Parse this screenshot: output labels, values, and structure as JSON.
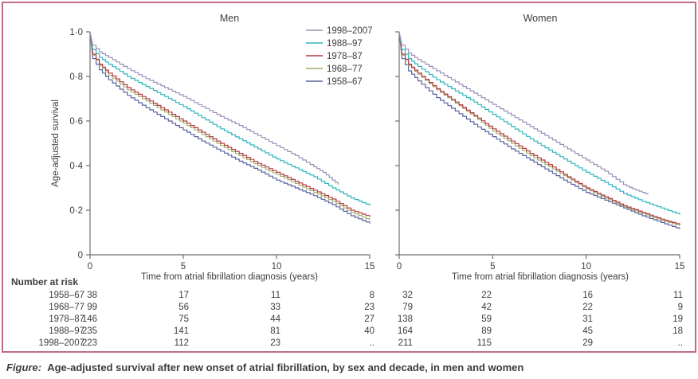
{
  "figure": {
    "caption_label": "Figure:",
    "caption_text": "Age-adjusted survival after new onset of atrial fibrillation, by sex and decade, in men and women",
    "frame_color": "#c06c8e",
    "text_color": "#3d3d3d",
    "axis_color": "#6e6e6e"
  },
  "chart_data": [
    {
      "type": "line",
      "title": "Men",
      "xlabel": "Time from atrial fibrillation diagnosis (years)",
      "ylabel": "Age-adjusted survival",
      "xlim": [
        0,
        15
      ],
      "ylim": [
        0,
        1
      ],
      "grid": false,
      "x_ticks": [
        {
          "v": 0,
          "label": "0"
        },
        {
          "v": 5,
          "label": "5"
        },
        {
          "v": 10,
          "label": "10"
        },
        {
          "v": 15,
          "label": "15"
        }
      ],
      "y_ticks": [
        {
          "v": 1,
          "label": "1·0"
        },
        {
          "v": 0.8,
          "label": "0·8"
        },
        {
          "v": 0.6,
          "label": "0·6"
        },
        {
          "v": 0.4,
          "label": "0·4"
        },
        {
          "v": 0.2,
          "label": "0·2"
        },
        {
          "v": 0,
          "label": "0"
        }
      ],
      "show_y_tick_labels": true,
      "legend": {
        "visible": true,
        "position": "top-right-inside"
      },
      "series": [
        {
          "name": "1998–2007",
          "color": "#9c8fb6",
          "points": [
            [
              0,
              1.0
            ],
            [
              0.15,
              0.94
            ],
            [
              0.5,
              0.91
            ],
            [
              1,
              0.885
            ],
            [
              2,
              0.835
            ],
            [
              3,
              0.79
            ],
            [
              4,
              0.75
            ],
            [
              5,
              0.71
            ],
            [
              6,
              0.665
            ],
            [
              7,
              0.62
            ],
            [
              8,
              0.58
            ],
            [
              9,
              0.535
            ],
            [
              10,
              0.49
            ],
            [
              11,
              0.445
            ],
            [
              12,
              0.395
            ],
            [
              12.5,
              0.37
            ],
            [
              13,
              0.335
            ],
            [
              13.3,
              0.315
            ]
          ]
        },
        {
          "name": "1988–97",
          "color": "#2fb4bd",
          "points": [
            [
              0,
              1.0
            ],
            [
              0.15,
              0.92
            ],
            [
              0.5,
              0.885
            ],
            [
              1,
              0.855
            ],
            [
              2,
              0.8
            ],
            [
              3,
              0.755
            ],
            [
              4,
              0.71
            ],
            [
              5,
              0.665
            ],
            [
              6,
              0.615
            ],
            [
              7,
              0.565
            ],
            [
              8,
              0.52
            ],
            [
              9,
              0.475
            ],
            [
              10,
              0.43
            ],
            [
              11,
              0.39
            ],
            [
              12,
              0.35
            ],
            [
              13,
              0.3
            ],
            [
              14,
              0.255
            ],
            [
              15,
              0.22
            ]
          ]
        },
        {
          "name": "1978–87",
          "color": "#b23a48",
          "points": [
            [
              0,
              1.0
            ],
            [
              0.15,
              0.9
            ],
            [
              0.5,
              0.855
            ],
            [
              1,
              0.815
            ],
            [
              2,
              0.75
            ],
            [
              3,
              0.7
            ],
            [
              4,
              0.65
            ],
            [
              5,
              0.6
            ],
            [
              6,
              0.55
            ],
            [
              7,
              0.5
            ],
            [
              8,
              0.455
            ],
            [
              9,
              0.41
            ],
            [
              10,
              0.37
            ],
            [
              11,
              0.33
            ],
            [
              12,
              0.29
            ],
            [
              13,
              0.25
            ],
            [
              14,
              0.2
            ],
            [
              15,
              0.17
            ]
          ]
        },
        {
          "name": "1968–77",
          "color": "#a3b069",
          "points": [
            [
              0,
              1.0
            ],
            [
              0.15,
              0.895
            ],
            [
              0.5,
              0.85
            ],
            [
              1,
              0.805
            ],
            [
              2,
              0.74
            ],
            [
              3,
              0.69
            ],
            [
              4,
              0.64
            ],
            [
              5,
              0.59
            ],
            [
              6,
              0.54
            ],
            [
              7,
              0.49
            ],
            [
              8,
              0.445
            ],
            [
              9,
              0.4
            ],
            [
              10,
              0.36
            ],
            [
              11,
              0.32
            ],
            [
              12,
              0.28
            ],
            [
              13,
              0.24
            ],
            [
              14,
              0.19
            ],
            [
              15,
              0.155
            ]
          ]
        },
        {
          "name": "1958–67",
          "color": "#57619e",
          "points": [
            [
              0,
              1.0
            ],
            [
              0.15,
              0.88
            ],
            [
              0.5,
              0.83
            ],
            [
              1,
              0.785
            ],
            [
              2,
              0.715
            ],
            [
              3,
              0.66
            ],
            [
              4,
              0.61
            ],
            [
              5,
              0.56
            ],
            [
              6,
              0.51
            ],
            [
              7,
              0.465
            ],
            [
              8,
              0.42
            ],
            [
              9,
              0.38
            ],
            [
              10,
              0.335
            ],
            [
              11,
              0.3
            ],
            [
              12,
              0.265
            ],
            [
              13,
              0.225
            ],
            [
              14,
              0.175
            ],
            [
              15,
              0.14
            ]
          ]
        }
      ]
    },
    {
      "type": "line",
      "title": "Women",
      "xlabel": "Time from atrial fibrillation diagnosis (years)",
      "ylabel": "Age-adjusted survival",
      "xlim": [
        0,
        15
      ],
      "ylim": [
        0,
        1
      ],
      "grid": false,
      "x_ticks": [
        {
          "v": 0,
          "label": "0"
        },
        {
          "v": 5,
          "label": "5"
        },
        {
          "v": 10,
          "label": "10"
        },
        {
          "v": 15,
          "label": "15"
        }
      ],
      "y_ticks": [
        {
          "v": 1,
          "label": "1·0"
        },
        {
          "v": 0.8,
          "label": "0·8"
        },
        {
          "v": 0.6,
          "label": "0·6"
        },
        {
          "v": 0.4,
          "label": "0·4"
        },
        {
          "v": 0.2,
          "label": "0·2"
        },
        {
          "v": 0,
          "label": "0"
        }
      ],
      "show_y_tick_labels": false,
      "legend": {
        "visible": false
      },
      "series": [
        {
          "name": "1998–2007",
          "color": "#9c8fb6",
          "points": [
            [
              0,
              1.0
            ],
            [
              0.15,
              0.94
            ],
            [
              0.5,
              0.905
            ],
            [
              1,
              0.875
            ],
            [
              2,
              0.825
            ],
            [
              3,
              0.775
            ],
            [
              4,
              0.725
            ],
            [
              5,
              0.675
            ],
            [
              6,
              0.625
            ],
            [
              7,
              0.575
            ],
            [
              8,
              0.525
            ],
            [
              9,
              0.475
            ],
            [
              10,
              0.425
            ],
            [
              11,
              0.375
            ],
            [
              12,
              0.315
            ],
            [
              12.5,
              0.295
            ],
            [
              13,
              0.28
            ],
            [
              13.3,
              0.27
            ]
          ]
        },
        {
          "name": "1988–97",
          "color": "#2fb4bd",
          "points": [
            [
              0,
              1.0
            ],
            [
              0.15,
              0.92
            ],
            [
              0.5,
              0.88
            ],
            [
              1,
              0.845
            ],
            [
              2,
              0.785
            ],
            [
              3,
              0.735
            ],
            [
              4,
              0.685
            ],
            [
              5,
              0.63
            ],
            [
              6,
              0.575
            ],
            [
              7,
              0.52
            ],
            [
              8,
              0.47
            ],
            [
              9,
              0.42
            ],
            [
              10,
              0.37
            ],
            [
              11,
              0.325
            ],
            [
              12,
              0.275
            ],
            [
              13,
              0.24
            ],
            [
              14,
              0.21
            ],
            [
              15,
              0.18
            ]
          ]
        },
        {
          "name": "1978–87",
          "color": "#b23a48",
          "points": [
            [
              0,
              1.0
            ],
            [
              0.15,
              0.9
            ],
            [
              0.5,
              0.855
            ],
            [
              1,
              0.815
            ],
            [
              2,
              0.745
            ],
            [
              3,
              0.685
            ],
            [
              4,
              0.625
            ],
            [
              5,
              0.565
            ],
            [
              6,
              0.51
            ],
            [
              7,
              0.455
            ],
            [
              8,
              0.405
            ],
            [
              9,
              0.35
            ],
            [
              10,
              0.3
            ],
            [
              11,
              0.26
            ],
            [
              12,
              0.22
            ],
            [
              13,
              0.19
            ],
            [
              14,
              0.16
            ],
            [
              15,
              0.135
            ]
          ]
        },
        {
          "name": "1968–77",
          "color": "#a3b069",
          "points": [
            [
              0,
              1.0
            ],
            [
              0.15,
              0.895
            ],
            [
              0.5,
              0.85
            ],
            [
              1,
              0.81
            ],
            [
              2,
              0.74
            ],
            [
              3,
              0.68
            ],
            [
              4,
              0.62
            ],
            [
              5,
              0.555
            ],
            [
              6,
              0.5
            ],
            [
              7,
              0.445
            ],
            [
              8,
              0.395
            ],
            [
              9,
              0.345
            ],
            [
              10,
              0.295
            ],
            [
              11,
              0.255
            ],
            [
              12,
              0.215
            ],
            [
              13,
              0.185
            ],
            [
              14,
              0.155
            ],
            [
              15,
              0.13
            ]
          ]
        },
        {
          "name": "1958–67",
          "color": "#57619e",
          "points": [
            [
              0,
              1.0
            ],
            [
              0.15,
              0.88
            ],
            [
              0.5,
              0.825
            ],
            [
              1,
              0.78
            ],
            [
              2,
              0.705
            ],
            [
              3,
              0.645
            ],
            [
              4,
              0.585
            ],
            [
              5,
              0.53
            ],
            [
              6,
              0.475
            ],
            [
              7,
              0.425
            ],
            [
              8,
              0.375
            ],
            [
              9,
              0.325
            ],
            [
              10,
              0.28
            ],
            [
              11,
              0.245
            ],
            [
              12,
              0.21
            ],
            [
              13,
              0.175
            ],
            [
              14,
              0.145
            ],
            [
              15,
              0.115
            ]
          ]
        }
      ]
    },
    {
      "type": "table",
      "title": "Number at risk",
      "row_labels": [
        "1958–67",
        "1968–77",
        "1978–87",
        "1988–97",
        "1998–2007"
      ],
      "time_columns": [
        0,
        5,
        10,
        15
      ],
      "men_values": [
        [
          "38",
          "17",
          "11",
          "8"
        ],
        [
          "99",
          "56",
          "33",
          "23"
        ],
        [
          "146",
          "75",
          "44",
          "27"
        ],
        [
          "235",
          "141",
          "81",
          "40"
        ],
        [
          "223",
          "112",
          "23",
          ".."
        ]
      ],
      "women_values": [
        [
          "32",
          "22",
          "16",
          "11"
        ],
        [
          "79",
          "42",
          "22",
          "9"
        ],
        [
          "138",
          "59",
          "31",
          "19"
        ],
        [
          "164",
          "89",
          "45",
          "18"
        ],
        [
          "211",
          "115",
          "29",
          ".."
        ]
      ]
    }
  ]
}
